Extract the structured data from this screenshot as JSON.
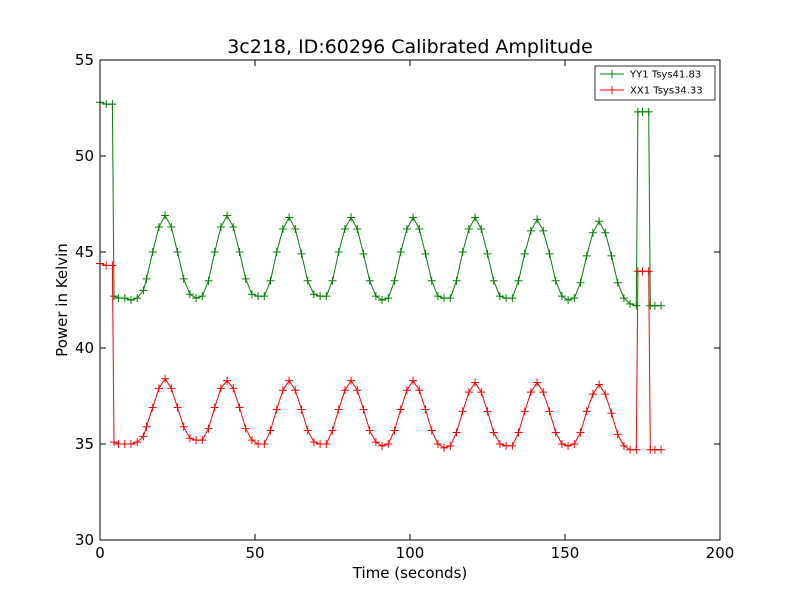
{
  "chart_data": {
    "type": "line",
    "title": "3c218, ID:60296 Calibrated Amplitude",
    "xlabel": "Time (seconds)",
    "ylabel": "Power in Kelvin",
    "xlim": [
      0,
      200
    ],
    "ylim": [
      30,
      55
    ],
    "xticks": [
      0,
      50,
      100,
      150,
      200
    ],
    "yticks": [
      30,
      35,
      40,
      45,
      50,
      55
    ],
    "grid": false,
    "legend_position": "top-right",
    "marker": "+",
    "series": [
      {
        "name": "YY1 Tsys41.83",
        "color": "#008000",
        "x": [
          0,
          2,
          4,
          4.5,
          6,
          8,
          10,
          12,
          14,
          15,
          17,
          19,
          21,
          23,
          25,
          27,
          29,
          31,
          33,
          35,
          37,
          39,
          41,
          43,
          45,
          47,
          49,
          51,
          53,
          55,
          57,
          59,
          61,
          63,
          65,
          67,
          69,
          71,
          73,
          75,
          77,
          79,
          81,
          83,
          85,
          87,
          89,
          91,
          93,
          95,
          97,
          99,
          101,
          103,
          105,
          107,
          109,
          111,
          113,
          115,
          117,
          119,
          121,
          123,
          125,
          127,
          129,
          131,
          133,
          135,
          137,
          139,
          141,
          143,
          145,
          147,
          149,
          151,
          153,
          155,
          157,
          159,
          161,
          163,
          165,
          167,
          169,
          171,
          173,
          173.5,
          175,
          177,
          177.5,
          179,
          181
        ],
        "y": [
          52.8,
          52.7,
          52.7,
          42.7,
          42.6,
          42.6,
          42.5,
          42.6,
          43.0,
          43.6,
          45.0,
          46.3,
          46.9,
          46.3,
          45.0,
          43.6,
          42.8,
          42.6,
          42.7,
          43.5,
          45.0,
          46.3,
          46.9,
          46.3,
          45.0,
          43.6,
          42.8,
          42.7,
          42.7,
          43.5,
          45.0,
          46.2,
          46.8,
          46.2,
          44.9,
          43.5,
          42.8,
          42.7,
          42.7,
          43.5,
          45.0,
          46.2,
          46.8,
          46.2,
          44.9,
          43.5,
          42.7,
          42.5,
          42.6,
          43.5,
          45.0,
          46.2,
          46.8,
          46.2,
          44.9,
          43.5,
          42.7,
          42.6,
          42.6,
          43.5,
          45.0,
          46.2,
          46.8,
          46.2,
          44.9,
          43.5,
          42.7,
          42.6,
          42.6,
          43.5,
          44.9,
          46.1,
          46.7,
          46.1,
          44.9,
          43.5,
          42.7,
          42.5,
          42.6,
          43.4,
          44.8,
          46.0,
          46.6,
          46.0,
          44.8,
          43.4,
          42.6,
          42.3,
          42.2,
          52.3,
          52.3,
          52.3,
          42.2,
          42.2,
          42.2
        ]
      },
      {
        "name": "XX1 Tsys34.33",
        "color": "#ff0000",
        "x": [
          0,
          2,
          4,
          4.5,
          6,
          8,
          10,
          12,
          14,
          15,
          17,
          19,
          21,
          23,
          25,
          27,
          29,
          31,
          33,
          35,
          37,
          39,
          41,
          43,
          45,
          47,
          49,
          51,
          53,
          55,
          57,
          59,
          61,
          63,
          65,
          67,
          69,
          71,
          73,
          75,
          77,
          79,
          81,
          83,
          85,
          87,
          89,
          91,
          93,
          95,
          97,
          99,
          101,
          103,
          105,
          107,
          109,
          111,
          113,
          115,
          117,
          119,
          121,
          123,
          125,
          127,
          129,
          131,
          133,
          135,
          137,
          139,
          141,
          143,
          145,
          147,
          149,
          151,
          153,
          155,
          157,
          159,
          161,
          163,
          165,
          167,
          169,
          171,
          173,
          173.5,
          175,
          177,
          177.5,
          179,
          181
        ],
        "y": [
          44.4,
          44.3,
          44.3,
          35.1,
          35.0,
          35.0,
          35.0,
          35.1,
          35.4,
          35.9,
          36.9,
          37.9,
          38.4,
          37.9,
          36.9,
          35.9,
          35.3,
          35.2,
          35.2,
          35.8,
          36.9,
          37.9,
          38.3,
          37.9,
          36.9,
          35.8,
          35.2,
          35.0,
          35.0,
          35.7,
          36.8,
          37.8,
          38.3,
          37.8,
          36.8,
          35.7,
          35.1,
          35.0,
          35.0,
          35.7,
          36.8,
          37.8,
          38.3,
          37.8,
          36.8,
          35.7,
          35.1,
          34.9,
          35.0,
          35.7,
          36.8,
          37.8,
          38.3,
          37.8,
          36.8,
          35.7,
          35.0,
          34.8,
          34.9,
          35.6,
          36.7,
          37.7,
          38.2,
          37.7,
          36.7,
          35.6,
          35.0,
          34.9,
          34.9,
          35.6,
          36.7,
          37.7,
          38.2,
          37.7,
          36.7,
          35.6,
          35.0,
          34.9,
          35.0,
          35.6,
          36.7,
          37.6,
          38.1,
          37.6,
          36.6,
          35.5,
          34.9,
          34.7,
          34.7,
          44.0,
          44.0,
          44.0,
          34.7,
          34.7,
          34.7
        ]
      }
    ]
  }
}
